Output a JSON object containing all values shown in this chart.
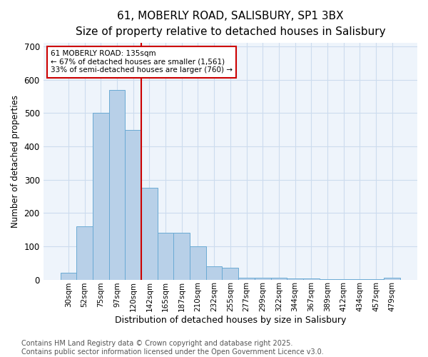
{
  "title1": "61, MOBERLY ROAD, SALISBURY, SP1 3BX",
  "title2": "Size of property relative to detached houses in Salisbury",
  "xlabel": "Distribution of detached houses by size in Salisbury",
  "ylabel": "Number of detached properties",
  "categories": [
    "30sqm",
    "52sqm",
    "75sqm",
    "97sqm",
    "120sqm",
    "142sqm",
    "165sqm",
    "187sqm",
    "210sqm",
    "232sqm",
    "255sqm",
    "277sqm",
    "299sqm",
    "322sqm",
    "344sqm",
    "367sqm",
    "389sqm",
    "412sqm",
    "434sqm",
    "457sqm",
    "479sqm"
  ],
  "values": [
    20,
    160,
    500,
    570,
    450,
    275,
    140,
    140,
    100,
    40,
    35,
    5,
    5,
    5,
    4,
    3,
    2,
    1,
    1,
    1,
    5
  ],
  "bar_color": "#b8d0e8",
  "bar_edge_color": "#6aaad4",
  "vline_color": "#cc0000",
  "vline_x_index": 3.5,
  "annotation_text": "61 MOBERLY ROAD: 135sqm\n← 67% of detached houses are smaller (1,561)\n33% of semi-detached houses are larger (760) →",
  "annotation_box_color": "#ffffff",
  "annotation_box_edge_color": "#cc0000",
  "grid_color": "#ccdcee",
  "background_color": "#eef4fb",
  "footer1": "Contains HM Land Registry data © Crown copyright and database right 2025.",
  "footer2": "Contains public sector information licensed under the Open Government Licence v3.0.",
  "ylim": [
    0,
    710
  ],
  "title_fontsize": 11,
  "subtitle_fontsize": 9.5,
  "xlabel_fontsize": 9,
  "ylabel_fontsize": 8.5,
  "tick_fontsize": 7.5,
  "footer_fontsize": 7
}
